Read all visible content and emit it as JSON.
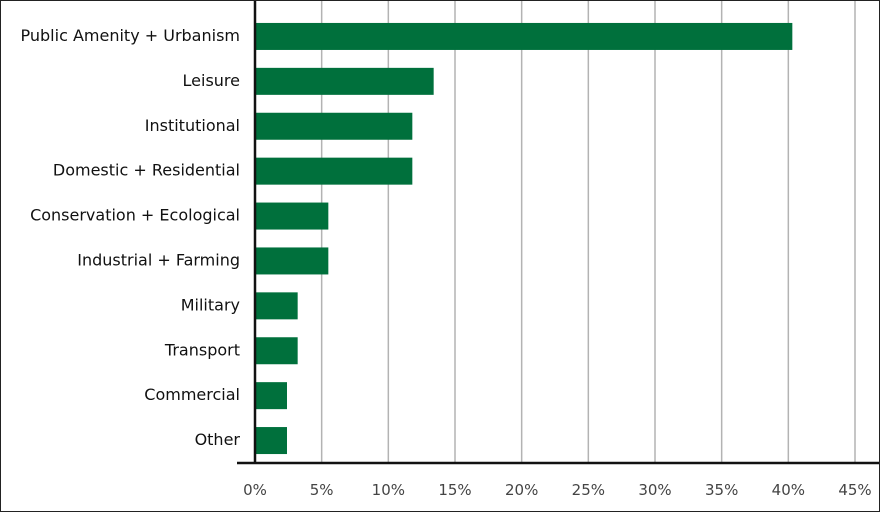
{
  "chart_data": {
    "type": "bar",
    "orientation": "horizontal",
    "title": "",
    "xlabel": "",
    "ylabel": "",
    "categories": [
      "Public Amenity + Urbanism",
      "Leisure",
      "Institutional",
      "Domestic + Residential",
      "Conservation + Ecological",
      "Industrial + Farming",
      "Military",
      "Transport",
      "Commercial",
      "Other"
    ],
    "values": [
      40.3,
      13.4,
      11.8,
      11.8,
      5.5,
      5.5,
      3.2,
      3.2,
      2.4,
      2.4
    ],
    "xlim": [
      0,
      45
    ],
    "x_ticks": [
      0,
      5,
      10,
      15,
      20,
      25,
      30,
      35,
      40,
      45
    ],
    "x_tick_labels": [
      "0%",
      "5%",
      "10%",
      "15%",
      "20%",
      "25%",
      "30%",
      "35%",
      "40%",
      "45%"
    ],
    "grid": "vertical",
    "legend": "none",
    "colors": {
      "bar": "#00703c",
      "grid": "#b3b3b3",
      "axis": "#111111"
    }
  }
}
